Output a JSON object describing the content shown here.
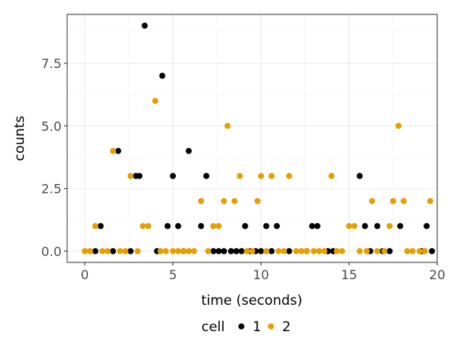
{
  "chart_data": {
    "type": "scatter",
    "xlabel": "time (seconds)",
    "ylabel": "counts",
    "xlim": [
      -1,
      20
    ],
    "ylim": [
      -0.45,
      9.45
    ],
    "xticks": [
      0,
      5,
      10,
      15,
      20
    ],
    "xtick_labels": [
      "0",
      "5",
      "10",
      "15",
      "20"
    ],
    "yticks": [
      0,
      2.5,
      5,
      7.5
    ],
    "ytick_labels": [
      "0.0",
      "2.5",
      "5.0",
      "7.5"
    ],
    "x_minor": [
      2.5,
      7.5,
      12.5,
      17.5
    ],
    "y_minor": [
      1.25,
      3.75,
      6.25,
      8.75
    ],
    "grid": true,
    "legend": {
      "title": "cell",
      "position": "bottom"
    },
    "series": [
      {
        "name": "1",
        "color": "#000000",
        "points": [
          [
            0.6,
            0
          ],
          [
            0.9,
            1
          ],
          [
            1.6,
            0
          ],
          [
            1.9,
            4
          ],
          [
            2.6,
            0
          ],
          [
            2.9,
            3
          ],
          [
            3.1,
            3
          ],
          [
            3.4,
            9
          ],
          [
            4.1,
            0
          ],
          [
            4.4,
            7
          ],
          [
            4.7,
            1
          ],
          [
            5.0,
            3
          ],
          [
            5.3,
            1
          ],
          [
            5.6,
            0
          ],
          [
            5.9,
            4
          ],
          [
            6.6,
            1
          ],
          [
            6.9,
            3
          ],
          [
            7.3,
            0
          ],
          [
            7.6,
            0
          ],
          [
            7.9,
            0
          ],
          [
            8.3,
            0
          ],
          [
            8.6,
            0
          ],
          [
            8.9,
            0
          ],
          [
            9.1,
            1
          ],
          [
            9.4,
            0
          ],
          [
            9.7,
            0
          ],
          [
            10.0,
            0
          ],
          [
            10.3,
            1
          ],
          [
            10.6,
            0
          ],
          [
            10.9,
            1
          ],
          [
            11.6,
            0
          ],
          [
            12.6,
            0
          ],
          [
            12.9,
            1
          ],
          [
            13.2,
            1
          ],
          [
            13.8,
            0
          ],
          [
            14.1,
            0
          ],
          [
            15.6,
            3
          ],
          [
            15.9,
            1
          ],
          [
            16.2,
            0
          ],
          [
            16.6,
            1
          ],
          [
            16.9,
            0
          ],
          [
            17.3,
            0
          ],
          [
            17.9,
            1
          ],
          [
            19.1,
            0
          ],
          [
            19.4,
            1
          ],
          [
            19.7,
            0
          ]
        ]
      },
      {
        "name": "2",
        "color": "#e69f00",
        "points": [
          [
            0,
            0
          ],
          [
            0.3,
            0
          ],
          [
            0.6,
            1
          ],
          [
            1.0,
            0
          ],
          [
            1.3,
            0
          ],
          [
            1.6,
            4
          ],
          [
            2.0,
            0
          ],
          [
            2.3,
            0
          ],
          [
            2.6,
            3
          ],
          [
            3.0,
            0
          ],
          [
            3.3,
            1
          ],
          [
            3.6,
            1
          ],
          [
            4.0,
            6
          ],
          [
            4.3,
            0
          ],
          [
            4.6,
            0
          ],
          [
            5.0,
            0
          ],
          [
            5.3,
            0
          ],
          [
            5.6,
            0
          ],
          [
            5.9,
            0
          ],
          [
            6.2,
            0
          ],
          [
            6.6,
            2
          ],
          [
            7.0,
            0
          ],
          [
            7.3,
            1
          ],
          [
            7.6,
            1
          ],
          [
            7.9,
            2
          ],
          [
            8.1,
            5
          ],
          [
            8.5,
            2
          ],
          [
            8.8,
            3
          ],
          [
            9.2,
            0
          ],
          [
            9.5,
            0
          ],
          [
            9.8,
            2
          ],
          [
            10.0,
            3
          ],
          [
            10.3,
            0
          ],
          [
            10.6,
            3
          ],
          [
            11.0,
            0
          ],
          [
            11.3,
            0
          ],
          [
            11.6,
            3
          ],
          [
            12.0,
            0
          ],
          [
            12.3,
            0
          ],
          [
            12.6,
            0
          ],
          [
            13.0,
            0
          ],
          [
            13.3,
            0
          ],
          [
            13.6,
            0
          ],
          [
            14.0,
            3
          ],
          [
            14.3,
            0
          ],
          [
            14.6,
            0
          ],
          [
            15.0,
            1
          ],
          [
            15.3,
            1
          ],
          [
            15.6,
            0
          ],
          [
            16.0,
            0
          ],
          [
            16.3,
            2
          ],
          [
            16.6,
            0
          ],
          [
            17.0,
            0
          ],
          [
            17.3,
            1
          ],
          [
            17.5,
            2
          ],
          [
            17.8,
            5
          ],
          [
            18.1,
            2
          ],
          [
            18.3,
            0
          ],
          [
            18.6,
            0
          ],
          [
            19.0,
            0
          ],
          [
            19.3,
            0
          ],
          [
            19.6,
            2
          ]
        ]
      }
    ]
  }
}
